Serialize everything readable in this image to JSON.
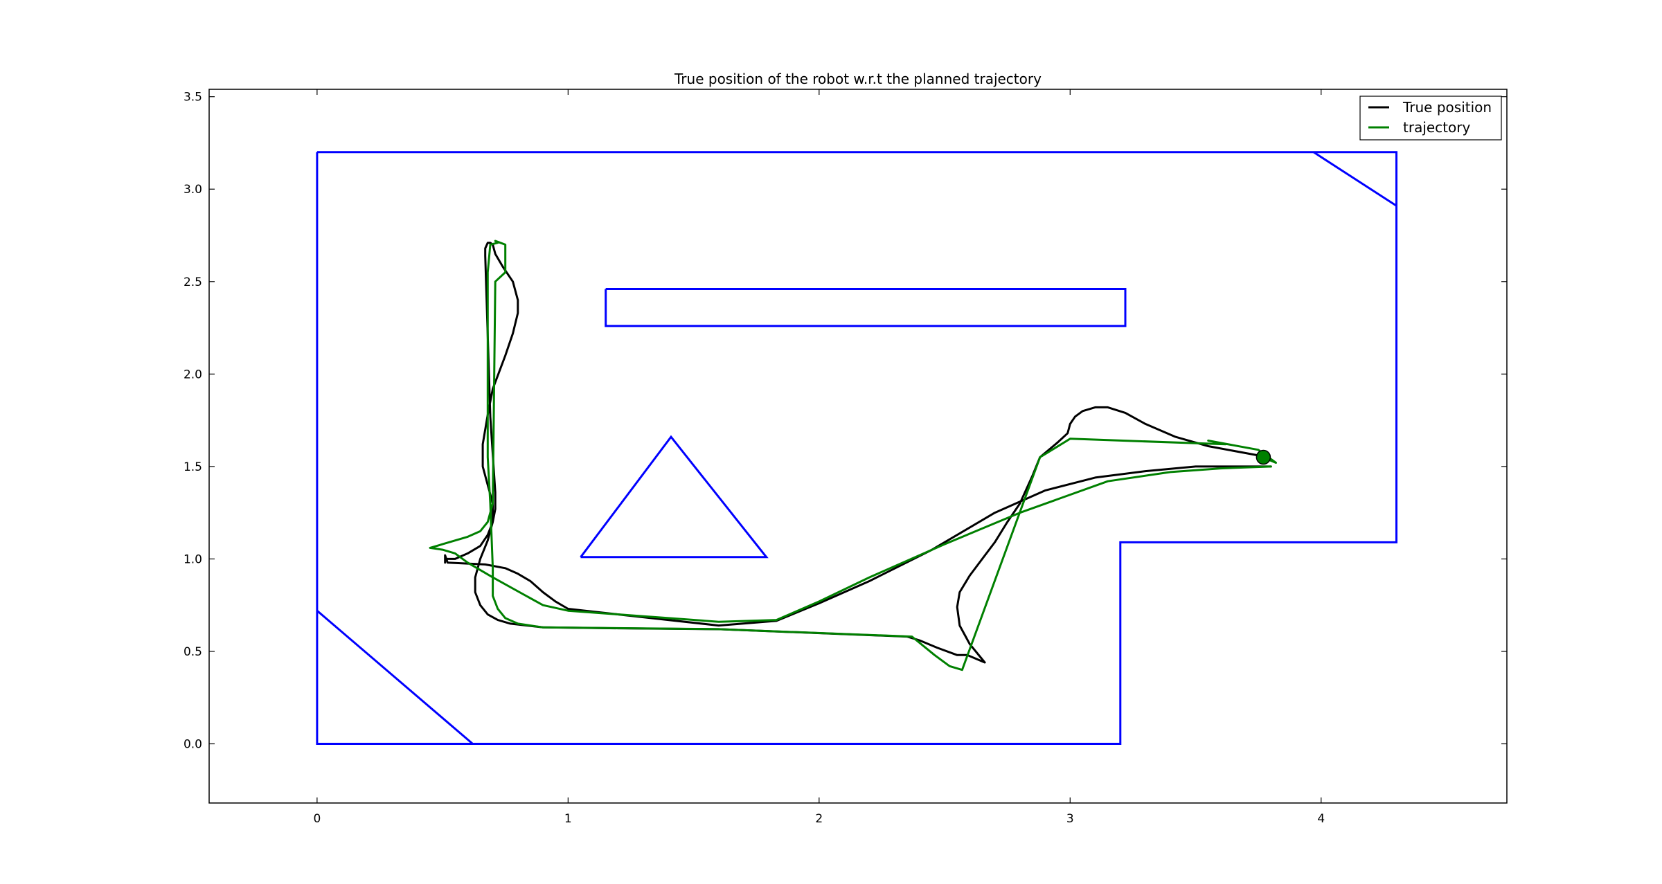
{
  "chart_data": {
    "type": "line",
    "title": "True position of the robot w.r.t the planned trajectory",
    "xlabel": "",
    "ylabel": "",
    "xlim": [
      -0.43,
      4.74
    ],
    "ylim": [
      -0.32,
      3.54
    ],
    "xticks": [
      0,
      1,
      2,
      3,
      4
    ],
    "yticks": [
      0.0,
      0.5,
      1.0,
      1.5,
      2.0,
      2.5,
      3.0,
      3.5
    ],
    "xtick_labels": [
      "0",
      "1",
      "2",
      "3",
      "4"
    ],
    "ytick_labels": [
      "0.0",
      "0.5",
      "1.0",
      "1.5",
      "2.0",
      "2.5",
      "3.0",
      "3.5"
    ],
    "grid": false,
    "legend_position": "top-right",
    "legend": [
      "True position",
      "trajectory"
    ],
    "colors": {
      "true_position": "#000000",
      "trajectory": "#008000",
      "obstacles": "#0000ff"
    },
    "obstacles": [
      {
        "shape": "boundary",
        "points": [
          [
            0.0,
            3.2
          ],
          [
            4.3,
            3.2
          ],
          [
            4.3,
            1.09
          ],
          [
            3.2,
            1.09
          ],
          [
            3.2,
            0.0
          ],
          [
            0.0,
            0.0
          ],
          [
            0.0,
            3.2
          ]
        ]
      },
      {
        "shape": "corner",
        "points": [
          [
            0.0,
            0.72
          ],
          [
            0.62,
            0.0
          ]
        ]
      },
      {
        "shape": "corner",
        "points": [
          [
            3.97,
            3.2
          ],
          [
            4.3,
            2.91
          ]
        ]
      },
      {
        "shape": "rectangle",
        "points": [
          [
            1.15,
            2.46
          ],
          [
            3.22,
            2.46
          ],
          [
            3.22,
            2.26
          ],
          [
            1.15,
            2.26
          ],
          [
            1.15,
            2.46
          ]
        ]
      },
      {
        "shape": "triangle",
        "points": [
          [
            1.05,
            1.01
          ],
          [
            1.41,
            1.66
          ],
          [
            1.79,
            1.01
          ],
          [
            1.05,
            1.01
          ]
        ]
      }
    ],
    "series": [
      {
        "name": "True position",
        "x": [
          3.75,
          3.55,
          3.42,
          3.3,
          3.22,
          3.15,
          3.1,
          3.05,
          3.02,
          3.0,
          2.99,
          2.95,
          2.88,
          2.85,
          2.8,
          2.75,
          2.7,
          2.65,
          2.6,
          2.56,
          2.55,
          2.56,
          2.6,
          2.66,
          2.59,
          2.55,
          2.47,
          2.4,
          2.35,
          1.6,
          1.2,
          0.9,
          0.77,
          0.72,
          0.68,
          0.65,
          0.63,
          0.63,
          0.65,
          0.68,
          0.7,
          0.7,
          0.68,
          0.66,
          0.66,
          0.68,
          0.7,
          0.75,
          0.78,
          0.8,
          0.8,
          0.78,
          0.74,
          0.71,
          0.7,
          0.69,
          0.68,
          0.67,
          0.67,
          0.69,
          0.71,
          0.71,
          0.7,
          0.68,
          0.65,
          0.6,
          0.55,
          0.51,
          0.51,
          0.51,
          0.52,
          0.67,
          0.75,
          0.8,
          0.85,
          0.9,
          0.95,
          1.0,
          1.2,
          1.6,
          1.83,
          2.0,
          2.2,
          2.45,
          2.7,
          2.9,
          3.1,
          3.3,
          3.5,
          3.65,
          3.8
        ],
        "y": [
          1.56,
          1.61,
          1.66,
          1.73,
          1.79,
          1.82,
          1.82,
          1.8,
          1.77,
          1.73,
          1.68,
          1.63,
          1.55,
          1.45,
          1.3,
          1.2,
          1.09,
          1.0,
          0.91,
          0.82,
          0.74,
          0.64,
          0.54,
          0.44,
          0.48,
          0.48,
          0.52,
          0.56,
          0.58,
          0.62,
          0.625,
          0.63,
          0.65,
          0.67,
          0.7,
          0.75,
          0.82,
          0.9,
          1.0,
          1.1,
          1.2,
          1.3,
          1.4,
          1.5,
          1.62,
          1.78,
          1.92,
          2.1,
          2.22,
          2.33,
          2.4,
          2.5,
          2.58,
          2.65,
          2.7,
          2.71,
          2.71,
          2.68,
          2.64,
          1.77,
          1.36,
          1.27,
          1.2,
          1.13,
          1.07,
          1.03,
          1.0,
          1.0,
          0.98,
          1.02,
          0.98,
          0.97,
          0.95,
          0.92,
          0.88,
          0.82,
          0.77,
          0.73,
          0.7,
          0.64,
          0.665,
          0.76,
          0.88,
          1.05,
          1.25,
          1.37,
          1.44,
          1.475,
          1.5,
          1.5,
          1.5
        ]
      },
      {
        "name": "trajectory",
        "x": [
          3.75,
          3.82,
          3.75,
          3.55,
          3.62,
          3.0,
          2.94,
          2.88,
          2.57,
          2.52,
          2.46,
          2.37,
          1.6,
          0.9,
          0.8,
          0.75,
          0.72,
          0.7,
          0.7,
          0.7,
          0.69,
          0.68,
          0.68,
          0.69,
          0.72,
          0.71,
          0.73,
          0.75,
          0.75,
          0.71,
          0.7,
          0.68,
          0.65,
          0.6,
          0.5,
          0.45,
          0.5,
          0.55,
          0.6,
          0.7,
          0.9,
          1.0,
          1.3,
          1.6,
          1.83,
          2.0,
          2.2,
          2.5,
          2.8,
          3.15,
          3.4,
          3.6,
          3.8
        ],
        "y": [
          1.56,
          1.52,
          1.59,
          1.64,
          1.62,
          1.65,
          1.6,
          1.55,
          0.4,
          0.42,
          0.48,
          0.58,
          0.62,
          0.63,
          0.65,
          0.68,
          0.73,
          0.8,
          0.87,
          0.95,
          1.3,
          1.55,
          2.55,
          2.7,
          2.71,
          2.72,
          2.71,
          2.7,
          2.55,
          2.5,
          1.3,
          1.2,
          1.15,
          1.12,
          1.08,
          1.06,
          1.05,
          1.03,
          0.98,
          0.9,
          0.75,
          0.72,
          0.69,
          0.66,
          0.67,
          0.77,
          0.9,
          1.08,
          1.25,
          1.42,
          1.47,
          1.49,
          1.5
        ]
      }
    ],
    "markers": [
      {
        "name": "robot",
        "x": 3.77,
        "y": 1.55
      }
    ]
  }
}
